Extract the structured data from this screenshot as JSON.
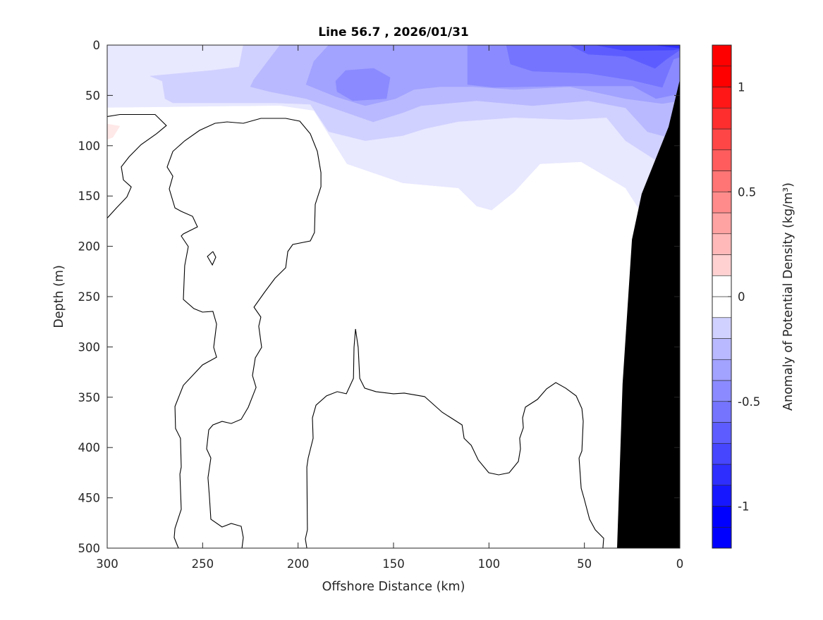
{
  "chart_data": {
    "type": "filled-contour",
    "title": "Line 56.7 , 2026/01/31",
    "xlabel": "Offshore Distance (km)",
    "ylabel": "Depth (m)",
    "xlim": [
      300,
      0
    ],
    "ylim": [
      0,
      500
    ],
    "x_reversed": true,
    "y_reversed": true,
    "xticks": [
      "300",
      "250",
      "200",
      "150",
      "100",
      "50",
      "0"
    ],
    "xtick_values": [
      300,
      250,
      200,
      150,
      100,
      50,
      0
    ],
    "yticks": [
      "0",
      "50",
      "100",
      "150",
      "200",
      "250",
      "300",
      "350",
      "400",
      "450",
      "500"
    ],
    "ytick_values": [
      0,
      50,
      100,
      150,
      200,
      250,
      300,
      350,
      400,
      450,
      500
    ],
    "grid": false,
    "colorbar": {
      "label": "Anomaly of Potential Density (kg/m³)",
      "range": [
        -1.2,
        1.2
      ],
      "step": 0.1,
      "ticks": [
        "1",
        "0.5",
        "0",
        "-0.5",
        "-1"
      ],
      "tick_values": [
        1,
        0.5,
        0,
        -0.5,
        -1
      ],
      "colormap": "blue-white-red",
      "negative_color": "#0000ff",
      "positive_color": "#ff0000",
      "placement": "right"
    },
    "filled_regions": [
      {
        "level": -0.1,
        "points": [
          [
            300,
            0
          ],
          [
            300,
            62
          ],
          [
            209.5,
            60
          ],
          [
            191.7,
            65
          ],
          [
            174.4,
            118
          ],
          [
            145.2,
            137
          ],
          [
            116,
            142
          ],
          [
            106.4,
            160
          ],
          [
            98.6,
            164
          ],
          [
            86.8,
            146
          ],
          [
            73.2,
            118
          ],
          [
            51.7,
            116
          ],
          [
            28.5,
            142
          ],
          [
            20.7,
            165
          ],
          [
            0,
            165
          ],
          [
            0,
            0
          ]
        ]
      },
      {
        "level": -0.2,
        "points": [
          [
            228.7,
            0
          ],
          [
            230.9,
            21.7
          ],
          [
            245.3,
            25.2
          ],
          [
            277.5,
            30.8
          ],
          [
            271.2,
            35.7
          ],
          [
            269.7,
            53.2
          ],
          [
            265.6,
            57.4
          ],
          [
            212,
            57.4
          ],
          [
            193.6,
            58.8
          ],
          [
            184,
            86
          ],
          [
            164.8,
            95
          ],
          [
            145.2,
            90
          ],
          [
            133.4,
            83
          ],
          [
            116,
            76
          ],
          [
            86.8,
            72
          ],
          [
            57.6,
            74
          ],
          [
            38.4,
            72
          ],
          [
            28.5,
            95
          ],
          [
            12.9,
            114
          ],
          [
            3.3,
            121
          ],
          [
            0,
            121
          ],
          [
            0,
            0
          ]
        ]
      },
      {
        "level": -0.3,
        "points": [
          [
            209.5,
            0
          ],
          [
            223.2,
            34.3
          ],
          [
            225,
            41.3
          ],
          [
            215,
            46.2
          ],
          [
            195.8,
            53.2
          ],
          [
            174.4,
            67.2
          ],
          [
            160.7,
            76.3
          ],
          [
            145.2,
            67.2
          ],
          [
            135.6,
            60.2
          ],
          [
            106.4,
            55.3
          ],
          [
            77.2,
            60.2
          ],
          [
            48,
            55.3
          ],
          [
            28.5,
            62.3
          ],
          [
            17,
            86.1
          ],
          [
            3.3,
            93.1
          ],
          [
            0,
            93.1
          ],
          [
            0,
            0
          ]
        ]
      },
      {
        "level": -0.4,
        "points": [
          [
            184,
            0
          ],
          [
            191.7,
            16.1
          ],
          [
            195.8,
            39.2
          ],
          [
            180.3,
            51.1
          ],
          [
            164.8,
            60.2
          ],
          [
            148.9,
            53.2
          ],
          [
            139.3,
            44.1
          ],
          [
            125.6,
            41.3
          ],
          [
            108.3,
            41.3
          ],
          [
            86.8,
            44.1
          ],
          [
            57.6,
            41.3
          ],
          [
            28.5,
            53.2
          ],
          [
            9.2,
            58.1
          ],
          [
            0,
            55.3
          ],
          [
            0,
            0
          ]
        ]
      },
      {
        "level": -0.5,
        "points": [
          [
            111.2,
            0
          ],
          [
            111.2,
            39.2
          ],
          [
            97.5,
            42
          ],
          [
            60.6,
            40.6
          ],
          [
            24.8,
            40.6
          ],
          [
            12.5,
            53.2
          ],
          [
            0,
            48.3
          ],
          [
            0,
            0
          ]
        ]
      },
      {
        "level": -0.5,
        "points": [
          [
            180.3,
            35.7
          ],
          [
            175.1,
            25.2
          ],
          [
            160.3,
            23.1
          ],
          [
            151.8,
            32.2
          ],
          [
            153.7,
            53.2
          ],
          [
            171.4,
            55.3
          ],
          [
            179.6,
            46.2
          ]
        ]
      },
      {
        "level": -0.6,
        "points": [
          [
            90.9,
            0
          ],
          [
            88.7,
            18.9
          ],
          [
            77.2,
            25.9
          ],
          [
            48,
            28
          ],
          [
            24.8,
            35
          ],
          [
            9.2,
            42
          ],
          [
            3.3,
            14
          ],
          [
            0,
            11.9
          ],
          [
            0,
            0
          ]
        ]
      },
      {
        "level": -0.7,
        "points": [
          [
            57.6,
            0
          ],
          [
            48,
            9.1
          ],
          [
            28.5,
            11.2
          ],
          [
            13,
            23.1
          ],
          [
            7,
            14
          ],
          [
            0,
            4.9
          ],
          [
            0,
            0
          ]
        ]
      },
      {
        "level": -0.8,
        "points": [
          [
            44,
            0
          ],
          [
            28.5,
            5.6
          ],
          [
            3.3,
            4.9
          ],
          [
            0,
            3.5
          ],
          [
            0,
            0
          ]
        ]
      },
      {
        "level": -0.9,
        "points": [
          [
            12.5,
            0
          ],
          [
            5,
            2
          ],
          [
            0,
            2.8
          ],
          [
            0,
            0
          ]
        ]
      },
      {
        "level": 0.1,
        "points": [
          [
            300,
            78.4
          ],
          [
            293.4,
            80.5
          ],
          [
            297,
            91.7
          ],
          [
            300,
            93.8
          ]
        ]
      }
    ],
    "bathymetry": {
      "color": "#000000",
      "points": [
        [
          0,
          34.3
        ],
        [
          5.9,
          81.2
        ],
        [
          13.3,
          116.2
        ],
        [
          20,
          147.8
        ],
        [
          25.1,
          193.3
        ],
        [
          30,
          336.8
        ],
        [
          32.9,
          500
        ],
        [
          0,
          500
        ]
      ]
    },
    "zero_contours": [
      [
        [
          300,
          71
        ],
        [
          293.3,
          69
        ],
        [
          274.9,
          69
        ],
        [
          269,
          80
        ],
        [
          274.1,
          88
        ],
        [
          282.3,
          99
        ],
        [
          288.5,
          111
        ],
        [
          292.6,
          121
        ],
        [
          291.5,
          134
        ],
        [
          287.4,
          141
        ],
        [
          289.7,
          151
        ],
        [
          295.2,
          162
        ],
        [
          300,
          172
        ]
      ],
      [
        [
          262.7,
          500
        ],
        [
          264.9,
          489.5
        ],
        [
          264.5,
          480.3
        ],
        [
          261.2,
          461.4
        ],
        [
          261.9,
          426.4
        ],
        [
          261.2,
          419.4
        ],
        [
          261.6,
          390.8
        ],
        [
          264.2,
          381
        ],
        [
          264.5,
          359.2
        ],
        [
          260.1,
          338.2
        ],
        [
          250.1,
          317.9
        ],
        [
          242.7,
          310.2
        ],
        [
          244.2,
          300.4
        ],
        [
          242.7,
          277.3
        ],
        [
          244.6,
          264.7
        ],
        [
          250.1,
          265.4
        ],
        [
          254.6,
          261.9
        ],
        [
          260.1,
          252.8
        ],
        [
          259.4,
          219.2
        ],
        [
          257.5,
          200.3
        ],
        [
          261.2,
          189.8
        ],
        [
          260.1,
          187.7
        ],
        [
          252.7,
          180.7
        ],
        [
          255.3,
          170.2
        ],
        [
          261.2,
          165.3
        ],
        [
          264.5,
          161.8
        ],
        [
          267.5,
          142.9
        ],
        [
          265.6,
          130.3
        ],
        [
          268.6,
          121.2
        ],
        [
          265.6,
          105.7
        ],
        [
          259.4,
          95.2
        ],
        [
          251.6,
          84.7
        ],
        [
          243.5,
          77.7
        ],
        [
          237.2,
          76.3
        ],
        [
          228.7,
          77.7
        ],
        [
          219.5,
          72.8
        ],
        [
          206.5,
          72.8
        ],
        [
          199.1,
          75.6
        ],
        [
          193.6,
          88.2
        ],
        [
          189.9,
          105.7
        ],
        [
          188,
          126.8
        ],
        [
          188,
          140.8
        ],
        [
          191,
          158.3
        ],
        [
          191.4,
          186.3
        ],
        [
          193.6,
          194.7
        ],
        [
          202.8,
          198.2
        ],
        [
          205.4,
          205.2
        ],
        [
          206.5,
          221.3
        ],
        [
          212.1,
          231.8
        ],
        [
          217.6,
          245.8
        ],
        [
          223.1,
          260.5
        ],
        [
          219.5,
          270.3
        ],
        [
          220.6,
          279.4
        ],
        [
          219.1,
          300.4
        ],
        [
          222.4,
          310.9
        ],
        [
          223.9,
          328.4
        ],
        [
          222,
          340.3
        ],
        [
          226.1,
          360
        ],
        [
          229.8,
          371.9
        ],
        [
          235,
          376.1
        ],
        [
          239.8,
          374
        ],
        [
          244.6,
          377.5
        ],
        [
          246.8,
          382.4
        ],
        [
          247.9,
          401.3
        ],
        [
          245.7,
          410.4
        ],
        [
          247.2,
          430
        ],
        [
          246.4,
          450.3
        ],
        [
          245.7,
          471.3
        ],
        [
          239.8,
          479
        ],
        [
          235,
          475.5
        ],
        [
          229.8,
          478.3
        ],
        [
          228.7,
          489.5
        ],
        [
          229.4,
          500
        ]
      ],
      [
        [
          244.6,
          205.2
        ],
        [
          243.1,
          210.8
        ],
        [
          244.9,
          218.5
        ],
        [
          247.5,
          210.1
        ],
        [
          244.6,
          205.2
        ]
      ],
      [
        [
          195.4,
          500
        ],
        [
          196.2,
          490.9
        ],
        [
          195.1,
          481.8
        ],
        [
          195.4,
          419.5
        ],
        [
          194.7,
          410.4
        ],
        [
          192.1,
          390.8
        ],
        [
          192.5,
          370.5
        ],
        [
          190.6,
          357.9
        ],
        [
          185.1,
          348.7
        ],
        [
          179.5,
          344.5
        ],
        [
          174.7,
          346.6
        ],
        [
          171,
          331.2
        ],
        [
          170.7,
          300.4
        ],
        [
          169.9,
          282.2
        ],
        [
          168.5,
          300.4
        ],
        [
          167.7,
          331.2
        ],
        [
          165.1,
          341
        ],
        [
          159.2,
          344.5
        ],
        [
          150,
          346.6
        ],
        [
          144.4,
          345.9
        ],
        [
          133.7,
          349.4
        ],
        [
          124.5,
          364.9
        ],
        [
          114.1,
          377.5
        ],
        [
          113,
          390.8
        ],
        [
          109.3,
          397.8
        ],
        [
          105.6,
          412.5
        ],
        [
          100.1,
          425.1
        ],
        [
          94.9,
          427.2
        ],
        [
          89.4,
          425.1
        ],
        [
          84.6,
          413.9
        ],
        [
          83.5,
          401.3
        ],
        [
          83.9,
          390.8
        ],
        [
          82,
          380.3
        ],
        [
          82.4,
          370.5
        ],
        [
          80.9,
          359.9
        ],
        [
          74.6,
          352.2
        ],
        [
          69.8,
          341.7
        ],
        [
          65,
          335.4
        ],
        [
          59.8,
          341
        ],
        [
          54.3,
          348.7
        ],
        [
          51.3,
          361.3
        ],
        [
          50.6,
          373.9
        ],
        [
          51.3,
          403.4
        ],
        [
          52.8,
          410.4
        ],
        [
          51.7,
          440.5
        ],
        [
          50.2,
          450.3
        ],
        [
          47.3,
          471.3
        ],
        [
          44.3,
          481.8
        ],
        [
          39.9,
          490.2
        ],
        [
          40.3,
          500
        ]
      ]
    ]
  }
}
